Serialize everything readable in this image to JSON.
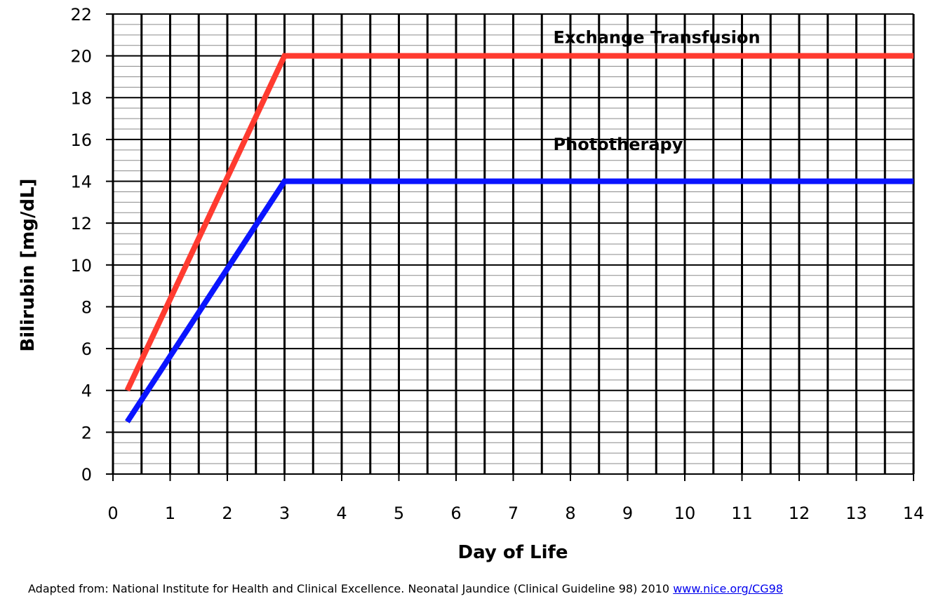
{
  "chart_data": {
    "type": "line",
    "xlabel": "Day of Life",
    "ylabel": "Bilirubin [mg/dL]",
    "xlim": [
      0,
      14
    ],
    "ylim": [
      0,
      22
    ],
    "x_ticks": [
      0,
      1,
      2,
      3,
      4,
      5,
      6,
      7,
      8,
      9,
      10,
      11,
      12,
      13,
      14
    ],
    "y_ticks": [
      0,
      2,
      4,
      6,
      8,
      10,
      12,
      14,
      16,
      18,
      20,
      22
    ],
    "grid": true,
    "series": [
      {
        "name": "Exchange Transfusion",
        "color": "#ff3b30",
        "points": [
          [
            0.25,
            4
          ],
          [
            3,
            20
          ],
          [
            14,
            20
          ]
        ],
        "label_at": [
          7.7,
          20.6
        ]
      },
      {
        "name": "Phototherapy",
        "color": "#0a14ff",
        "points": [
          [
            0.25,
            2.5
          ],
          [
            3,
            14
          ],
          [
            14,
            14
          ]
        ],
        "label_at": [
          7.7,
          15.5
        ]
      }
    ]
  },
  "footer": {
    "source_text": "Adapted from: National Institute for Health and Clinical Excellence.  Neonatal Jaundice (Clinical Guideline 98) 2010 ",
    "source_link": "www.nice.org/CG98"
  }
}
